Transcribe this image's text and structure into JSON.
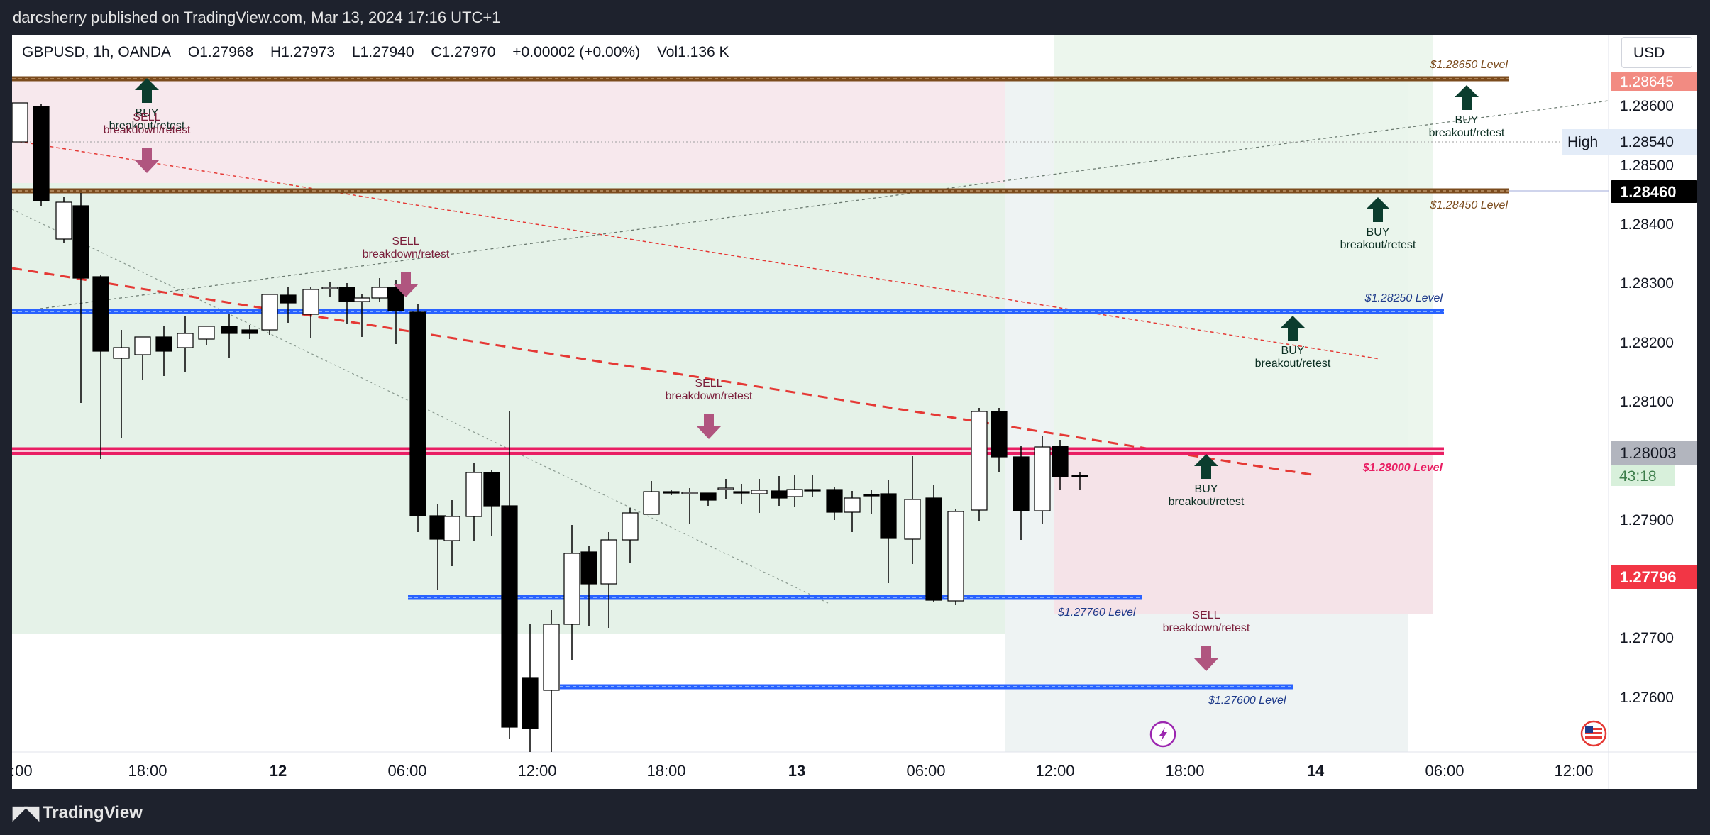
{
  "header": {
    "published_text": "darcsherry published on TradingView.com, Mar 13, 2024 17:16 UTC+1"
  },
  "symbol_bar": {
    "symbol": "GBPUSD, 1h, OANDA",
    "open": "O1.27968",
    "high": "H1.27973",
    "low": "L1.27940",
    "close": "C1.27970",
    "change": "+0.00002 (+0.00%)",
    "volume": "Vol1.136 K"
  },
  "currency": "USD",
  "price_axis": {
    "ticks": [
      "1.28600",
      "1.28500",
      "1.28400",
      "1.28300",
      "1.28200",
      "1.28100",
      "1.27900",
      "1.27700",
      "1.27600"
    ],
    "labels": {
      "level_top": "1.28645",
      "high_tag": "High",
      "high_value": "1.28540",
      "current_black": "1.28460",
      "last_price": "1.28003",
      "countdown": "43:18",
      "red_label": "1.27796"
    }
  },
  "time_axis": {
    "ticks": [
      ":00",
      "18:00",
      "12",
      "06:00",
      "12:00",
      "18:00",
      "13",
      "06:00",
      "12:00",
      "18:00",
      "14",
      "06:00",
      "12:00"
    ]
  },
  "levels": {
    "l28650": "$1.28650 Level",
    "l28450": "$1.28450 Level",
    "l28250": "$1.28250 Level",
    "l28000": "$1.28000 Level",
    "l27760": "$1.27760 Level",
    "l27600": "$1.27600 Level"
  },
  "signals": {
    "buy": "BUY",
    "sell": "SELL",
    "breakout": "breakout/retest",
    "breakdown": "breakdown/retest"
  },
  "colors": {
    "background": "#1e222d",
    "bull_candle": "#ffffff",
    "bear_candle": "#000000",
    "level_brown": "#7b4b1d",
    "level_blue": "#2962ff",
    "level_pink": "#e91e63",
    "buy_arrow": "#0b3d2e",
    "sell_arrow": "#b0557f"
  },
  "footer": {
    "brand": "TradingView"
  }
}
